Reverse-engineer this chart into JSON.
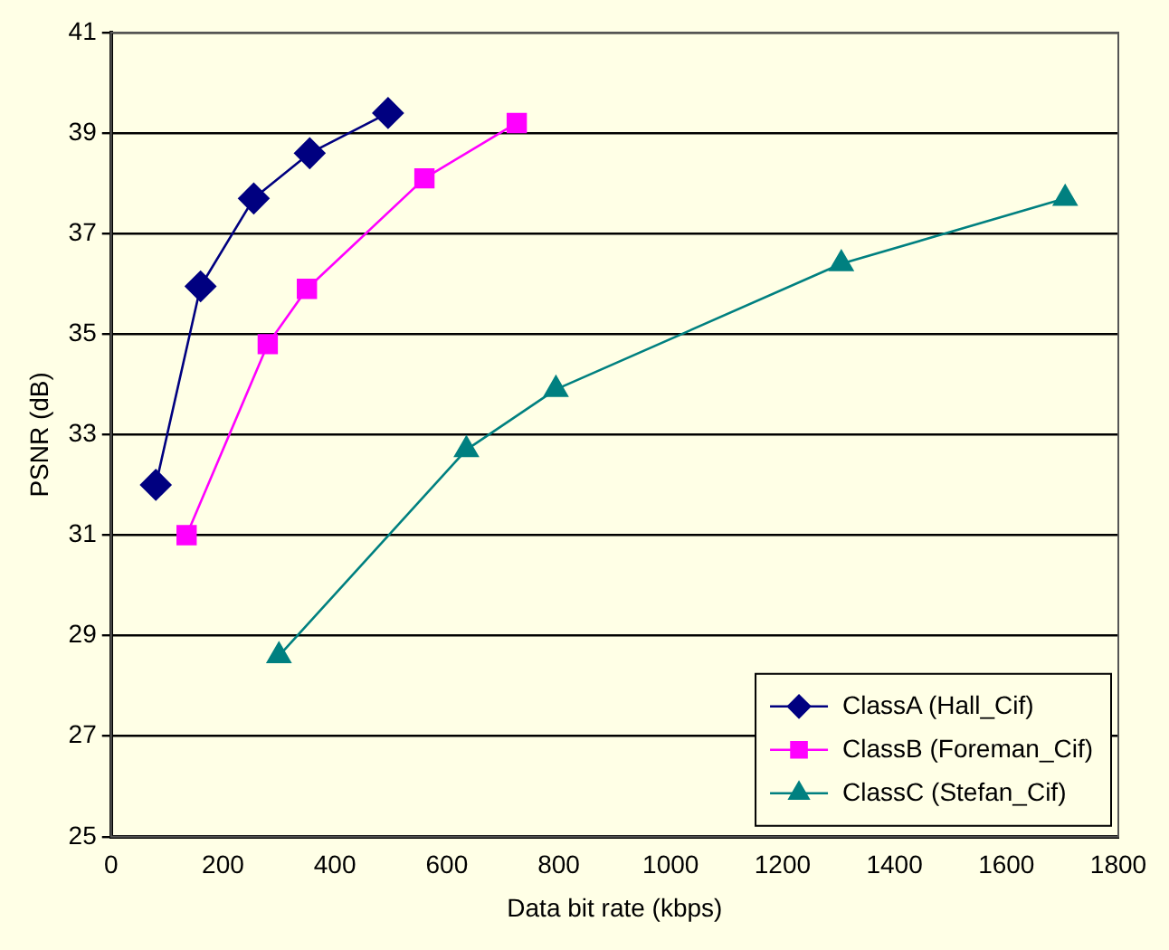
{
  "chart_data": {
    "type": "line",
    "xlabel": "Data bit rate (kbps)",
    "ylabel": "PSNR (dB)",
    "xlim": [
      0,
      1800
    ],
    "xticks": [
      0,
      200,
      400,
      600,
      800,
      1000,
      1200,
      1400,
      1600,
      1800
    ],
    "ylim": [
      25,
      41
    ],
    "yticks": [
      25,
      27,
      29,
      31,
      33,
      35,
      37,
      39,
      41
    ],
    "grid": "y",
    "legend": "bottom right",
    "line_style": "solid",
    "series": [
      {
        "name": "ClassA (Hall_Cif)",
        "color": "#000080",
        "marker": "diamond",
        "x": [
          80,
          160,
          255,
          355,
          495
        ],
        "values": [
          32,
          35.95,
          37.7,
          38.6,
          39.4
        ]
      },
      {
        "name": "ClassB (Foreman_Cif)",
        "color": "#ff00ff",
        "marker": "square",
        "x": [
          135,
          280,
          350,
          560,
          725
        ],
        "values": [
          31,
          34.8,
          35.9,
          38.1,
          39.2
        ]
      },
      {
        "name": "ClassC (Stefan_Cif)",
        "color": "#008080",
        "marker": "triangle",
        "x": [
          300,
          635,
          795,
          1305,
          1705
        ],
        "values": [
          28.6,
          32.7,
          33.9,
          36.4,
          37.7
        ]
      }
    ]
  }
}
